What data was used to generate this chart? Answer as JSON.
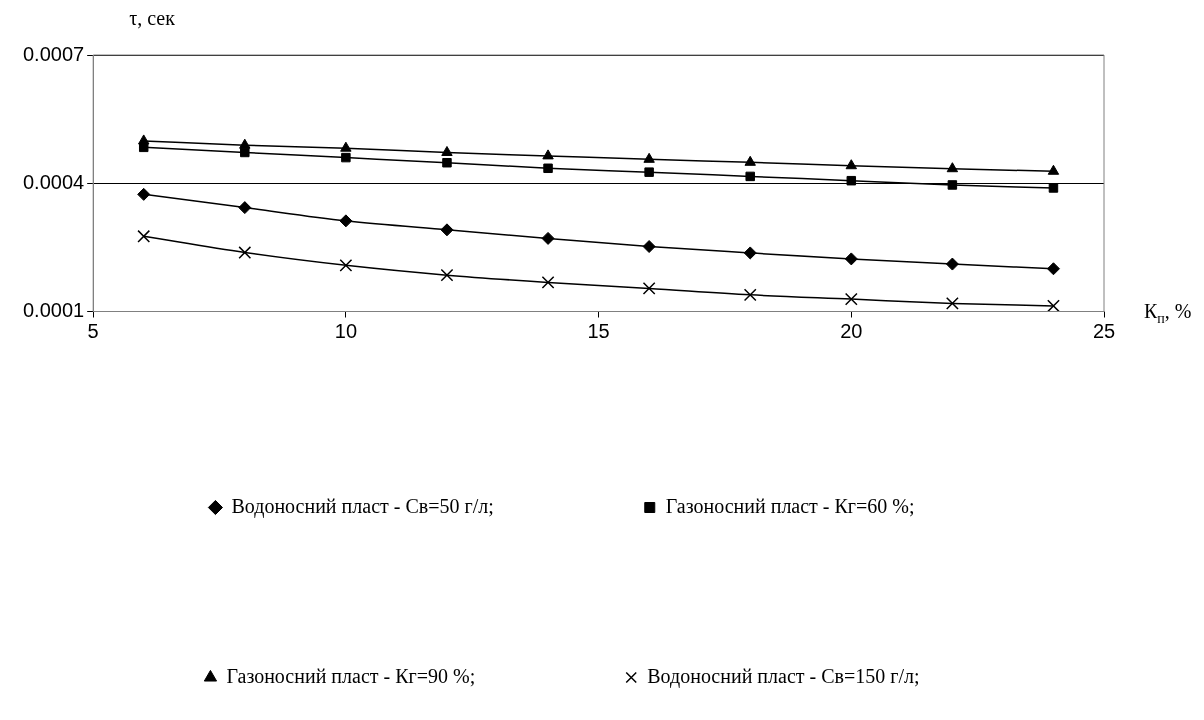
{
  "chart_data": {
    "type": "line",
    "xlabel": "К$_{п}$, %",
    "ylabel": "τ, сек",
    "x": [
      6,
      8,
      10,
      12,
      14,
      16,
      18,
      20,
      22,
      24
    ],
    "xlim": [
      5,
      25
    ],
    "xticks": [
      5,
      10,
      15,
      20,
      25
    ],
    "ylim": [
      0.0001,
      0.0007
    ],
    "yticks": [
      0.0001,
      0.0004,
      0.0007
    ],
    "grid": "y",
    "legend": "bottom",
    "line_style": "solid",
    "series": [
      {
        "name": "Водоносний пласт - Св=50 г/л;",
        "color": "#000000",
        "marker": "diamond",
        "values": [
          0.000374,
          0.000343,
          0.000312,
          0.000291,
          0.000271,
          0.000252,
          0.000237,
          0.000223,
          0.000211,
          0.0002
        ]
      },
      {
        "name": "Газоносний пласт - Кг=60 %;",
        "color": "#000000",
        "marker": "square",
        "values": [
          0.000484,
          0.000472,
          0.00046,
          0.000448,
          0.000435,
          0.000426,
          0.000416,
          0.000406,
          0.000396,
          0.000389
        ]
      },
      {
        "name": "Газоносний пласт - Кг=90 %;",
        "color": "#000000",
        "marker": "triangle",
        "values": [
          0.000499,
          0.000489,
          0.000482,
          0.000472,
          0.000464,
          0.000456,
          0.000449,
          0.000441,
          0.000434,
          0.000428
        ]
      },
      {
        "name": "Водоносний пласт - Св=150 г/л;",
        "color": "#000000",
        "marker": "cross",
        "values": [
          0.000276,
          0.000238,
          0.000208,
          0.000185,
          0.000168,
          0.000154,
          0.000139,
          0.000129,
          0.000119,
          0.000113
        ]
      }
    ]
  }
}
